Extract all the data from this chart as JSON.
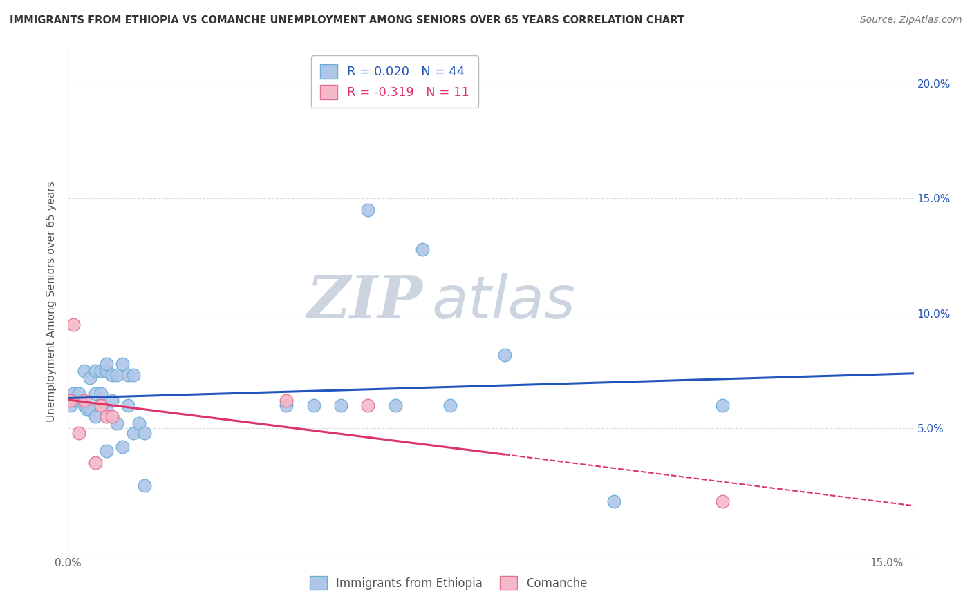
{
  "title": "IMMIGRANTS FROM ETHIOPIA VS COMANCHE UNEMPLOYMENT AMONG SENIORS OVER 65 YEARS CORRELATION CHART",
  "source": "Source: ZipAtlas.com",
  "ylabel": "Unemployment Among Seniors over 65 years",
  "xlim": [
    0.0,
    0.155
  ],
  "ylim": [
    -0.005,
    0.215
  ],
  "blue_R": 0.02,
  "blue_N": 44,
  "pink_R": -0.319,
  "pink_N": 11,
  "blue_color": "#aec6e8",
  "blue_edge": "#6aaed6",
  "pink_color": "#f4b8c8",
  "pink_edge": "#e07090",
  "blue_line_color": "#2255bb",
  "pink_line_color": "#dd3366",
  "watermark_zip": "ZIP",
  "watermark_atlas": "atlas",
  "watermark_color": "#ccd4e0",
  "blue_scatter_x": [
    0.0005,
    0.001,
    0.001,
    0.0015,
    0.002,
    0.002,
    0.003,
    0.003,
    0.0035,
    0.004,
    0.004,
    0.005,
    0.005,
    0.005,
    0.006,
    0.006,
    0.006,
    0.007,
    0.007,
    0.007,
    0.007,
    0.008,
    0.008,
    0.009,
    0.009,
    0.01,
    0.01,
    0.011,
    0.011,
    0.012,
    0.012,
    0.013,
    0.014,
    0.014,
    0.04,
    0.045,
    0.05,
    0.055,
    0.06,
    0.065,
    0.07,
    0.08,
    0.1,
    0.12
  ],
  "blue_scatter_y": [
    0.06,
    0.063,
    0.065,
    0.062,
    0.062,
    0.065,
    0.06,
    0.075,
    0.058,
    0.058,
    0.072,
    0.055,
    0.065,
    0.075,
    0.06,
    0.065,
    0.075,
    0.04,
    0.058,
    0.075,
    0.078,
    0.062,
    0.073,
    0.052,
    0.073,
    0.042,
    0.078,
    0.06,
    0.073,
    0.048,
    0.073,
    0.052,
    0.025,
    0.048,
    0.06,
    0.06,
    0.06,
    0.145,
    0.06,
    0.128,
    0.06,
    0.082,
    0.018,
    0.06
  ],
  "pink_scatter_x": [
    0.0005,
    0.001,
    0.002,
    0.003,
    0.005,
    0.006,
    0.007,
    0.008,
    0.04,
    0.055,
    0.12
  ],
  "pink_scatter_y": [
    0.062,
    0.095,
    0.048,
    0.062,
    0.035,
    0.06,
    0.055,
    0.055,
    0.062,
    0.06,
    0.018
  ],
  "background_color": "#ffffff",
  "grid_color": "#dddddd",
  "grid_style": "--",
  "ytick_vals": [
    0.0,
    0.05,
    0.1,
    0.15,
    0.2
  ],
  "xtick_vals": [
    0.0,
    0.03,
    0.06,
    0.09,
    0.12,
    0.15
  ]
}
